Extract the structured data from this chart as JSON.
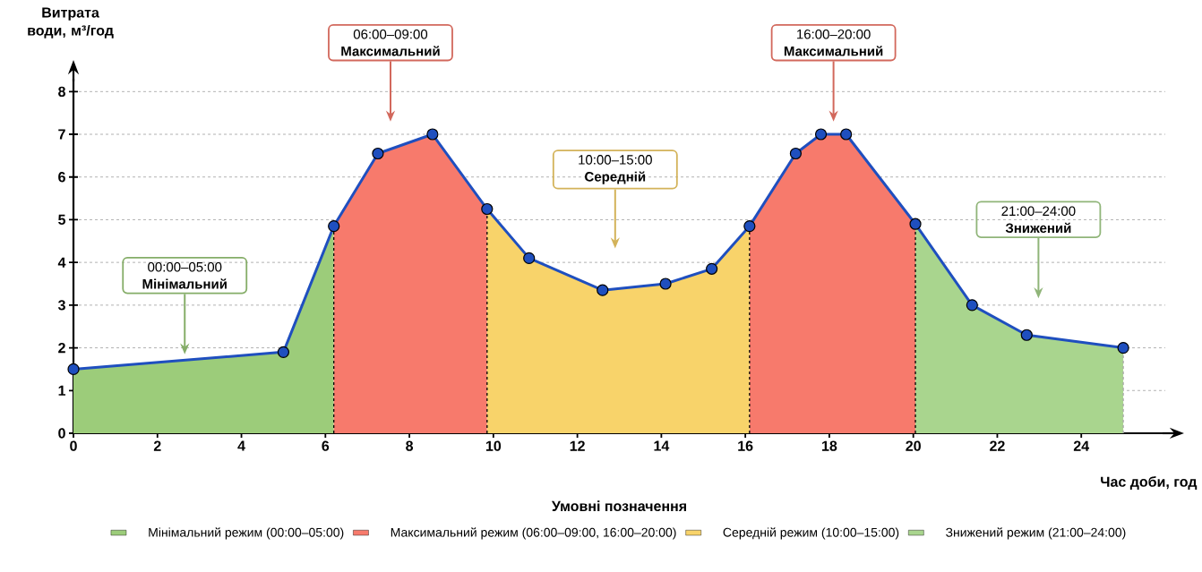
{
  "chart_data": {
    "type": "line",
    "ylabel": "Витрата води, м³/год",
    "xlabel": "Час доби, год",
    "legend_title": "Умовні позначення",
    "xlim": [
      0,
      26
    ],
    "ylim": [
      0,
      8.3
    ],
    "xticks": [
      0,
      2,
      4,
      6,
      8,
      10,
      12,
      14,
      16,
      18,
      20,
      22,
      24
    ],
    "yticks": [
      0,
      1,
      2,
      3,
      4,
      5,
      6,
      7,
      8
    ],
    "grid": "y",
    "legend": "bottom",
    "series": [
      {
        "type": "area",
        "name": "Мінімальний режим (00:00–05:00)",
        "color": "#9ccc7a",
        "x": [
          0,
          5,
          6.2
        ],
        "values": [
          1.5,
          1.9,
          4.85
        ]
      },
      {
        "type": "area",
        "name": "Максимальний режим (06:00–09:00, 16:00–20:00)",
        "color": "#f77a6c",
        "x": [
          6.2,
          7.25,
          8.55,
          9.85,
          13,
          16.1,
          17.2,
          17.8,
          18.4,
          20.05
        ],
        "values": [
          4.85,
          6.55,
          7,
          5.25,
          null,
          4.85,
          6.55,
          7,
          7,
          4.9
        ]
      },
      {
        "type": "area",
        "name": "Середній режим (10:00–15:00)",
        "color": "#f8d36a",
        "x": [
          9.85,
          10.85,
          12.6,
          14.1,
          15.2,
          16.1
        ],
        "values": [
          5.25,
          4.1,
          3.35,
          3.5,
          3.85,
          4.85
        ]
      },
      {
        "type": "area",
        "name": "Знижений режим (21:00–24:00)",
        "color": "#a9d58e",
        "x": [
          20.05,
          21.4,
          22.7,
          25
        ],
        "values": [
          4.9,
          3,
          2.3,
          2
        ]
      },
      {
        "type": "line",
        "color": "#1f4fbf",
        "marker": "circle",
        "x": [
          0,
          5,
          6.2,
          7.25,
          8.55,
          9.85,
          10.85,
          12.6,
          14.1,
          15.2,
          16.1,
          17.2,
          17.8,
          18.4,
          20.05,
          21.4,
          22.7,
          25
        ],
        "values": [
          1.5,
          1.9,
          4.85,
          6.55,
          7,
          5.25,
          4.1,
          3.35,
          3.5,
          3.85,
          4.85,
          6.55,
          7,
          7,
          4.9,
          3,
          2.3,
          2
        ]
      }
    ],
    "ref_lines": [
      {
        "axis": "x",
        "value": 6.2,
        "line_style": "dashed",
        "color": "#000000"
      },
      {
        "axis": "x",
        "value": 9.85,
        "line_style": "dashed",
        "color": "#000000"
      },
      {
        "axis": "x",
        "value": 16.1,
        "line_style": "dashed",
        "color": "#000000"
      },
      {
        "axis": "x",
        "value": 20.05,
        "line_style": "dashed",
        "color": "#000000"
      },
      {
        "axis": "x",
        "value": 25,
        "line_style": "dashed",
        "color": "#aaaaaa"
      }
    ],
    "annotations": [
      "00:00–05:00 **Мінімальний**",
      "06:00–09:00 **Максимальний**",
      "10:00–15:00 **Середній**",
      "16:00–20:00 **Максимальний**",
      "21:00–24:00 **Знижений**"
    ]
  }
}
